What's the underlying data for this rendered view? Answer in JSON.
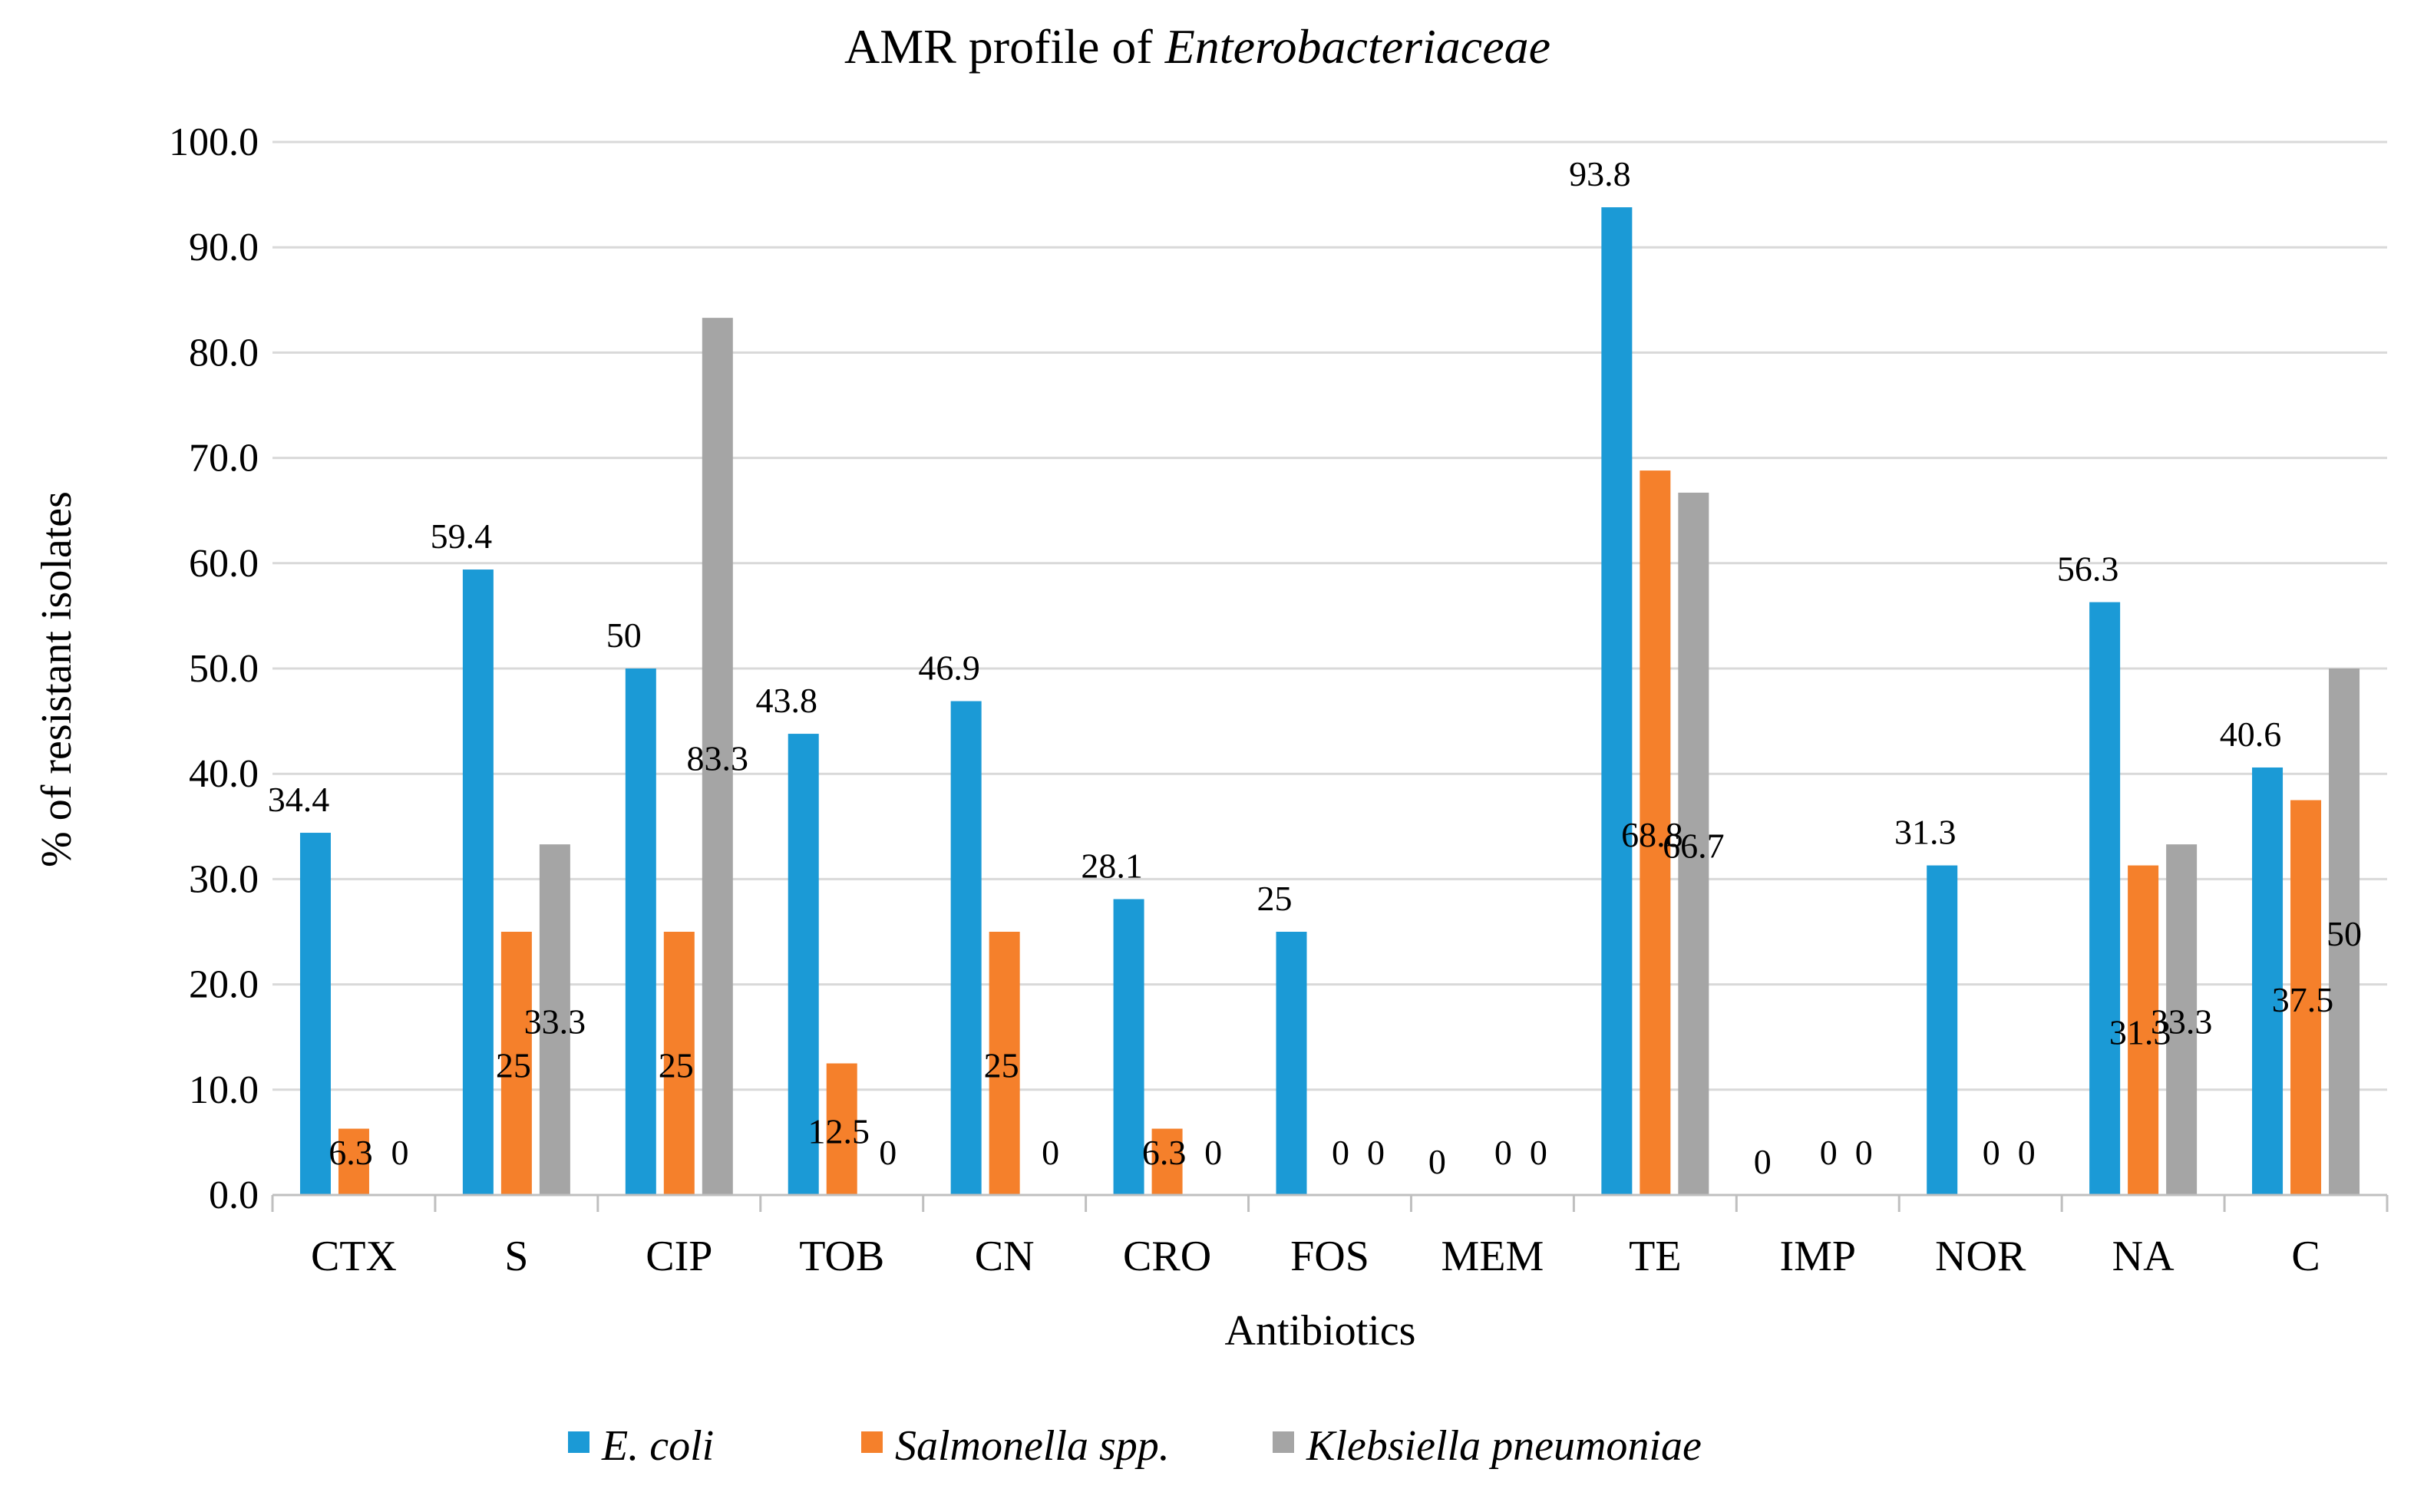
{
  "chart_data": {
    "type": "bar",
    "title": "AMR profile of",
    "title_italic": "Enterobacteriaceae",
    "xlabel": "Antibiotics",
    "ylabel": "% of resistant isolates",
    "ylim": [
      0,
      100
    ],
    "ytick_step": 10,
    "ytick_labels": [
      "0.0",
      "10.0",
      "20.0",
      "30.0",
      "40.0",
      "50.0",
      "60.0",
      "70.0",
      "80.0",
      "90.0",
      "100.0"
    ],
    "grid": true,
    "legend_position": "bottom",
    "categories": [
      "CTX",
      "S",
      "CIP",
      "TOB",
      "CN",
      "CRO",
      "FOS",
      "MEM",
      "TE",
      "IMP",
      "NOR",
      "NA",
      "C"
    ],
    "series": [
      {
        "name": "E. coli",
        "color": "#1b9ad6",
        "values": [
          34.4,
          59.4,
          50,
          43.8,
          46.9,
          28.1,
          25,
          0,
          93.8,
          0,
          31.3,
          56.3,
          40.6
        ],
        "labels": [
          "34.4",
          "59.4",
          "50",
          "43.8",
          "46.9",
          "28.1",
          "25",
          "0",
          "93.8",
          "0",
          "31.3",
          "56.3",
          "40.6"
        ]
      },
      {
        "name": "Salmonella spp.",
        "color": "#f5802b",
        "values": [
          6.3,
          25,
          25,
          12.5,
          25,
          6.3,
          0,
          0,
          68.8,
          0,
          0,
          31.3,
          37.5
        ],
        "labels": [
          "6.3",
          "25",
          "25",
          "12.5",
          "25",
          "6.3",
          "0",
          "0",
          "68.8",
          "0",
          "0",
          "31.3",
          "37.5"
        ]
      },
      {
        "name": "Klebsiella pneumoniae",
        "color": "#a5a5a5",
        "values": [
          0,
          33.3,
          83.3,
          0,
          0,
          0,
          0,
          0,
          66.7,
          0,
          0,
          33.3,
          50
        ],
        "labels": [
          "0",
          "33.3",
          "83.3",
          "0",
          "0",
          "0",
          "0",
          "0",
          "66.7",
          "0",
          "0",
          "33.3",
          "50"
        ]
      }
    ]
  }
}
